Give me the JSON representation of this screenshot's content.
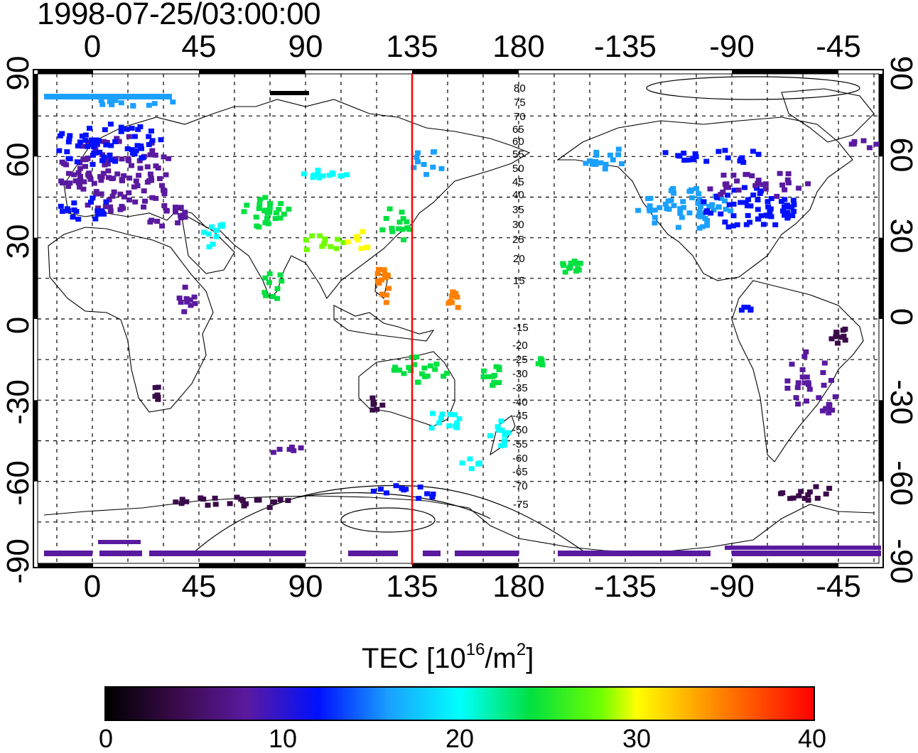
{
  "timestamp": "1998-07-25/03:00:00",
  "map": {
    "top_ticks": [
      "0",
      "45",
      "90",
      "135",
      "180",
      "-135",
      "-90",
      "-45"
    ],
    "bottom_ticks": [
      "0",
      "45",
      "90",
      "135",
      "180",
      "-135",
      "-90",
      "-45"
    ],
    "left_ticks": [
      "90",
      "60",
      "30",
      "0",
      "-30",
      "-60",
      "-90"
    ],
    "right_ticks": [
      "90",
      "60",
      "30",
      "0",
      "-30",
      "-60",
      "-90"
    ],
    "magnetic_lat_labels_north": [
      "80",
      "75",
      "70",
      "65",
      "60",
      "55",
      "50",
      "45",
      "40",
      "35",
      "30",
      "25",
      "20",
      "15"
    ],
    "magnetic_lat_labels_south": [
      "-15",
      "-20",
      "-25",
      "-30",
      "-35",
      "-40",
      "-45",
      "-50",
      "-55",
      "-60",
      "-65",
      "-70",
      "-75"
    ],
    "meridian_line_longitude": 135,
    "meridian_line_color": "#ff0000",
    "tec_colors": [
      "#000000",
      "#3a0a4a",
      "#5a1aa0",
      "#0010ff",
      "#1aa0ff",
      "#00ffff",
      "#00e040",
      "#70ff00",
      "#ffff00",
      "#ff8000",
      "#ff0000"
    ]
  },
  "colorbar": {
    "title_prefix": "TEC  [10",
    "title_exp": "16",
    "title_mid": "/m",
    "title_exp2": "2",
    "title_suffix": "]",
    "ticks": [
      "0",
      "10",
      "20",
      "30",
      "40"
    ]
  }
}
